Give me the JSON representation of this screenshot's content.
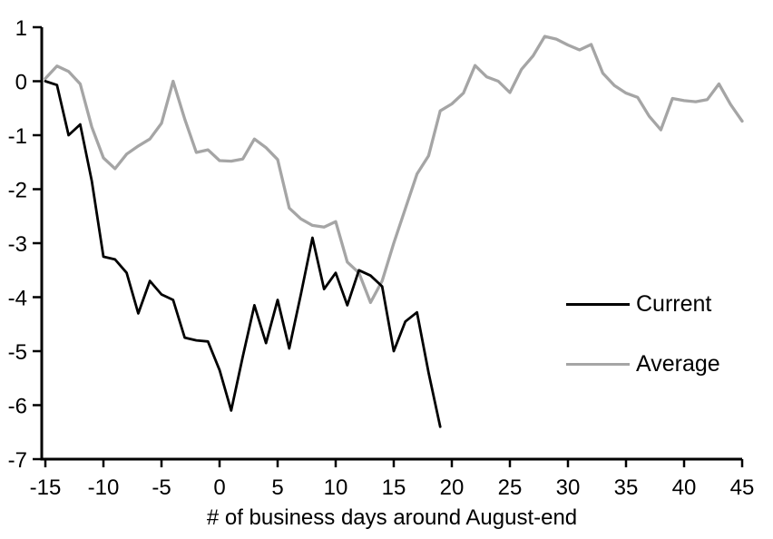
{
  "chart_data": {
    "type": "line",
    "title": "",
    "xlabel": "# of business days around August-end",
    "ylabel": "",
    "xlim": [
      -15,
      45
    ],
    "ylim": [
      -7,
      1
    ],
    "x_ticks": [
      -15,
      -10,
      -5,
      0,
      5,
      10,
      15,
      20,
      25,
      30,
      35,
      40,
      45
    ],
    "y_ticks": [
      1,
      0,
      -1,
      -2,
      -3,
      -4,
      -5,
      -6,
      -7
    ],
    "grid": false,
    "legend_position": "right-middle",
    "series": [
      {
        "name": "Current",
        "color": "#000000",
        "x": [
          -15,
          -14,
          -13,
          -12,
          -11,
          -10,
          -9,
          -8,
          -7,
          -6,
          -5,
          -4,
          -3,
          -2,
          -1,
          0,
          1,
          2,
          3,
          4,
          5,
          6,
          7,
          8,
          9,
          10,
          11,
          12,
          13,
          14,
          15,
          16,
          17,
          18,
          19
        ],
        "values": [
          0,
          -0.07,
          -1.0,
          -0.8,
          -1.85,
          -3.25,
          -3.3,
          -3.55,
          -4.3,
          -3.7,
          -3.95,
          -4.05,
          -4.75,
          -4.8,
          -4.82,
          -5.35,
          -6.1,
          -5.1,
          -4.15,
          -4.85,
          -4.05,
          -4.95,
          -3.95,
          -2.9,
          -3.85,
          -3.55,
          -4.15,
          -3.5,
          -3.6,
          -3.8,
          -5.0,
          -4.45,
          -4.28,
          -5.4,
          -6.4
        ]
      },
      {
        "name": "Average",
        "color": "#a5a5a5",
        "x": [
          -15,
          -14,
          -13,
          -12,
          -11,
          -10,
          -9,
          -8,
          -7,
          -6,
          -5,
          -4,
          -3,
          -2,
          -1,
          0,
          1,
          2,
          3,
          4,
          5,
          6,
          7,
          8,
          9,
          10,
          11,
          12,
          13,
          14,
          15,
          16,
          17,
          18,
          19,
          20,
          21,
          22,
          23,
          24,
          25,
          26,
          27,
          28,
          29,
          30,
          31,
          32,
          33,
          34,
          35,
          36,
          37,
          38,
          39,
          40,
          41,
          42,
          43,
          44,
          45
        ],
        "values": [
          0.05,
          0.28,
          0.18,
          -0.05,
          -0.85,
          -1.42,
          -1.62,
          -1.35,
          -1.2,
          -1.07,
          -0.78,
          0,
          -0.7,
          -1.32,
          -1.27,
          -1.47,
          -1.48,
          -1.44,
          -1.07,
          -1.23,
          -1.45,
          -2.35,
          -2.55,
          -2.67,
          -2.7,
          -2.6,
          -3.35,
          -3.55,
          -4.1,
          -3.7,
          -3.0,
          -2.36,
          -1.72,
          -1.38,
          -0.55,
          -0.42,
          -0.22,
          0.29,
          0.08,
          0,
          -0.21,
          0.22,
          0.47,
          0.83,
          0.78,
          0.67,
          0.58,
          0.68,
          0.15,
          -0.08,
          -0.22,
          -0.3,
          -0.65,
          -0.9,
          -0.32,
          -0.36,
          -0.38,
          -0.34,
          -0.05,
          -0.43,
          -0.74
        ]
      }
    ]
  },
  "legend": {
    "current_label": "Current",
    "average_label": "Average"
  },
  "colors": {
    "axis": "#000000",
    "background": "#ffffff",
    "current": "#000000",
    "average": "#a5a5a5"
  }
}
